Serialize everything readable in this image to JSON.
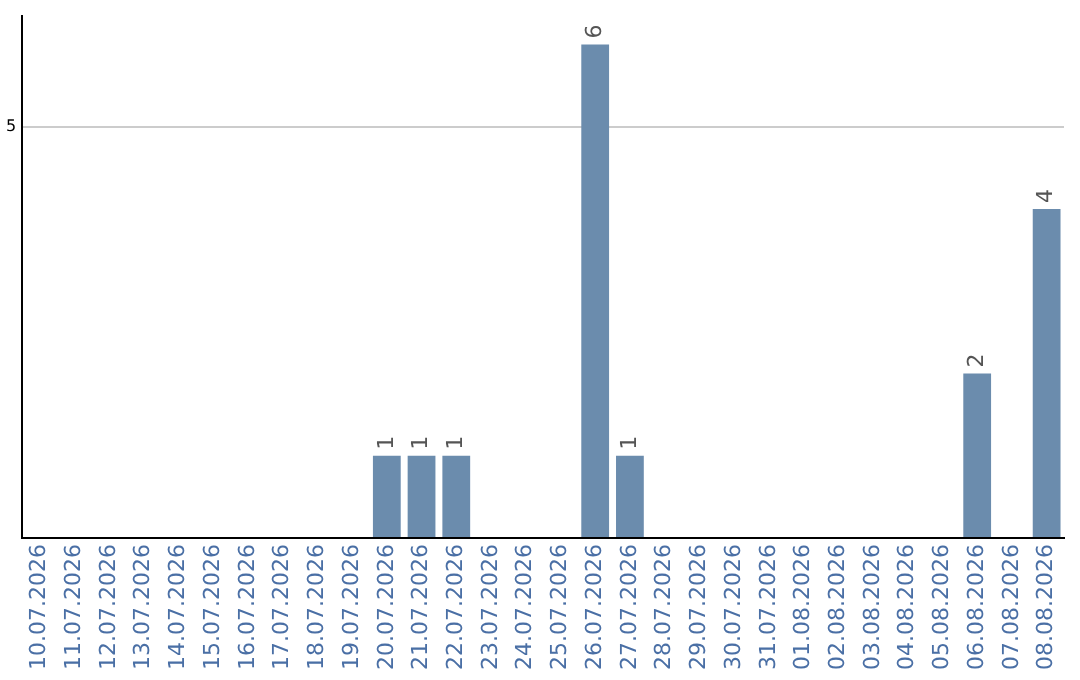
{
  "chart_data": {
    "type": "bar",
    "categories": [
      "10.07.2026",
      "11.07.2026",
      "12.07.2026",
      "13.07.2026",
      "14.07.2026",
      "15.07.2026",
      "16.07.2026",
      "17.07.2026",
      "18.07.2026",
      "19.07.2026",
      "20.07.2026",
      "21.07.2026",
      "22.07.2026",
      "23.07.2026",
      "24.07.2026",
      "25.07.2026",
      "26.07.2026",
      "27.07.2026",
      "28.07.2026",
      "29.07.2026",
      "30.07.2026",
      "31.07.2026",
      "01.08.2026",
      "02.08.2026",
      "03.08.2026",
      "04.08.2026",
      "05.08.2026",
      "06.08.2026",
      "07.08.2026",
      "08.08.2026"
    ],
    "values": [
      null,
      null,
      null,
      null,
      null,
      null,
      null,
      null,
      null,
      null,
      1,
      1,
      1,
      null,
      null,
      null,
      6,
      1,
      null,
      null,
      null,
      null,
      null,
      null,
      null,
      null,
      null,
      2,
      null,
      4
    ],
    "color": "#6b8cad",
    "ylim": [
      0,
      6.35
    ],
    "yticks": [
      {
        "value": 0,
        "label": null
      },
      5
    ],
    "grid": "y",
    "legend": false,
    "data_labels": true
  }
}
